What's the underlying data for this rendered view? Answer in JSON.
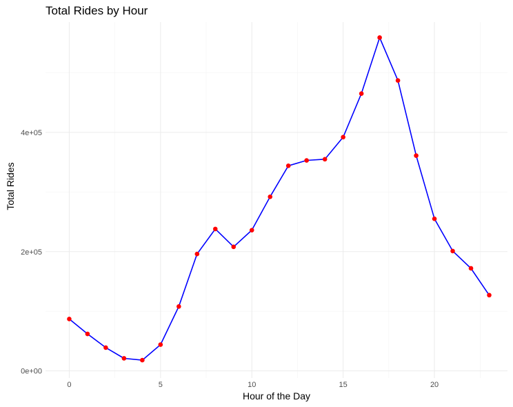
{
  "chart_data": {
    "type": "line",
    "title": "Total Rides by Hour",
    "xlabel": "Hour of the Day",
    "ylabel": "Total Rides",
    "x": [
      0,
      1,
      2,
      3,
      4,
      5,
      6,
      7,
      8,
      9,
      10,
      11,
      12,
      13,
      14,
      15,
      16,
      17,
      18,
      19,
      20,
      21,
      22,
      23
    ],
    "series": [
      {
        "values": [
          87000,
          62000,
          39000,
          21000,
          18000,
          44000,
          108000,
          196000,
          238000,
          208000,
          236000,
          292000,
          344000,
          353000,
          355000,
          392000,
          465000,
          559000,
          487000,
          361000,
          255000,
          201000,
          172000,
          127000
        ],
        "line_color": "#0000ff",
        "point_color": "#ff0000"
      }
    ],
    "xlim": [
      -1.3,
      24
    ],
    "ylim": [
      -12000,
      585000
    ],
    "x_ticks": [
      0,
      5,
      10,
      15,
      20
    ],
    "x_tick_labels": [
      "0",
      "5",
      "10",
      "15",
      "20"
    ],
    "y_ticks": [
      0,
      200000,
      400000
    ],
    "y_tick_labels": [
      "0e+00",
      "2e+05",
      "4e+05"
    ],
    "grid": true,
    "legend": "none"
  }
}
